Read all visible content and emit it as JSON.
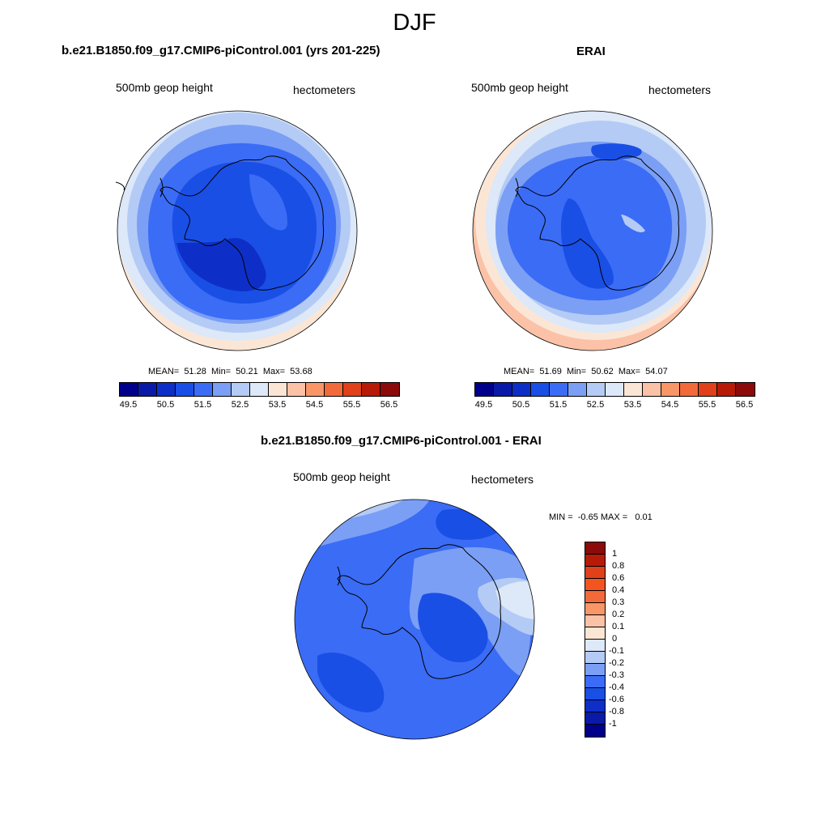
{
  "figure": {
    "title": "DJF"
  },
  "panels": [
    {
      "title": "b.e21.B1850.f09_g17.CMIP6-piControl.001 (yrs 201-225)",
      "left_label": "500mb geop height",
      "right_label": "hectometers",
      "stats": "MEAN=  51.28  Min=  50.21  Max=  53.68"
    },
    {
      "title": "ERAI",
      "left_label": "500mb geop height",
      "right_label": "hectometers",
      "stats": "MEAN=  51.69  Min=  50.62  Max=  54.07"
    },
    {
      "title": "b.e21.B1850.f09_g17.CMIP6-piControl.001 - ERAI",
      "left_label": "500mb geop height",
      "right_label": "hectometers",
      "stats": "MIN =  -0.65 MAX =   0.01"
    }
  ],
  "colorbar_fields": {
    "colors": [
      "#00008b",
      "#0a1aa8",
      "#0d2fc8",
      "#1a4fe6",
      "#3b6cf5",
      "#7b9ff5",
      "#b4cbf5",
      "#dde8f8",
      "#fbe6d6",
      "#fbc2a8",
      "#f89668",
      "#f26a3a",
      "#e0401a",
      "#b81a08",
      "#8b0a0a"
    ],
    "tick_labels": [
      "49.5",
      "50.5",
      "51.5",
      "52.5",
      "53.5",
      "54.5",
      "55.5",
      "56.5"
    ]
  },
  "colorbar_diff": {
    "colors_top_to_bottom": [
      "#8b0a0a",
      "#b81a08",
      "#e0401a",
      "#f25520",
      "#f26a3a",
      "#f89668",
      "#fbc2a8",
      "#fbe6d6",
      "#dde8f8",
      "#b4cbf5",
      "#7b9ff5",
      "#3b6cf5",
      "#1a4fe6",
      "#0d2fc8",
      "#0a1aa8",
      "#00008b"
    ],
    "tick_labels_top_to_bottom": [
      "1",
      "0.8",
      "0.6",
      "0.4",
      "0.3",
      "0.2",
      "0.1",
      "0",
      "-0.1",
      "-0.2",
      "-0.3",
      "-0.4",
      "-0.6",
      "-0.8",
      "-1"
    ]
  },
  "map_fill_colors": {
    "far_ring": "#fbe6d6",
    "ring1": "#dde8f8",
    "ring2": "#b4cbf5",
    "ring3": "#7b9ff5",
    "ring4": "#3b6cf5",
    "ring5": "#1a4fe6",
    "ring6": "#0d2fc8"
  }
}
